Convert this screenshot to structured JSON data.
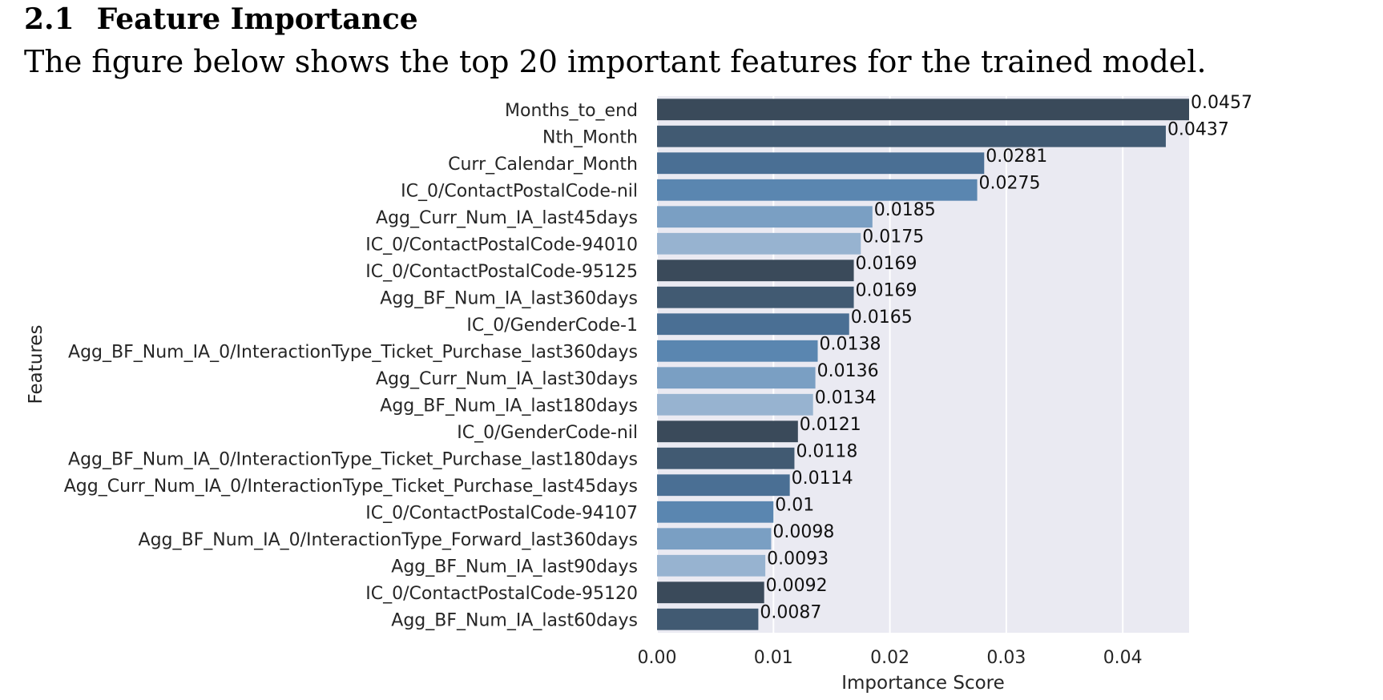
{
  "section": {
    "number": "2.1",
    "title": "Feature Importance",
    "caption": "The figure below shows the top 20 important features for the trained model."
  },
  "chart_data": {
    "type": "bar",
    "orientation": "horizontal",
    "xlabel": "Importance Score",
    "ylabel": "Features",
    "xlim": [
      0,
      0.0457
    ],
    "xticks": [
      "0.00",
      "0.01",
      "0.02",
      "0.03",
      "0.04"
    ],
    "grid": true,
    "categories": [
      "Months_to_end",
      "Nth_Month",
      "Curr_Calendar_Month",
      "IC_0/ContactPostalCode-nil",
      "Agg_Curr_Num_IA_last45days",
      "IC_0/ContactPostalCode-94010",
      "IC_0/ContactPostalCode-95125",
      "Agg_BF_Num_IA_last360days",
      "IC_0/GenderCode-1",
      "Agg_BF_Num_IA_0/InteractionType_Ticket_Purchase_last360days",
      "Agg_Curr_Num_IA_last30days",
      "Agg_BF_Num_IA_last180days",
      "IC_0/GenderCode-nil",
      "Agg_BF_Num_IA_0/InteractionType_Ticket_Purchase_last180days",
      "Agg_Curr_Num_IA_0/InteractionType_Ticket_Purchase_last45days",
      "IC_0/ContactPostalCode-94107",
      "Agg_BF_Num_IA_0/InteractionType_Forward_last360days",
      "Agg_BF_Num_IA_last90days",
      "IC_0/ContactPostalCode-95120",
      "Agg_BF_Num_IA_last60days"
    ],
    "values": [
      0.0457,
      0.0437,
      0.0281,
      0.0275,
      0.0185,
      0.0175,
      0.0169,
      0.0169,
      0.0165,
      0.0138,
      0.0136,
      0.0134,
      0.0121,
      0.0118,
      0.0114,
      0.01,
      0.0098,
      0.0093,
      0.0092,
      0.0087
    ],
    "value_labels": [
      "0.0457",
      "0.0437",
      "0.0281",
      "0.0275",
      "0.0185",
      "0.0175",
      "0.0169",
      "0.0169",
      "0.0165",
      "0.0138",
      "0.0136",
      "0.0134",
      "0.0121",
      "0.0118",
      "0.0114",
      "0.01",
      "0.0098",
      "0.0093",
      "0.0092",
      "0.0087"
    ],
    "palette": [
      "#3a4a5a",
      "#415a72",
      "#4a6f94",
      "#5a86b0",
      "#7a9fc3",
      "#97b3d0"
    ],
    "background": "#eaeaf2",
    "grid_color": "#ffffff"
  }
}
